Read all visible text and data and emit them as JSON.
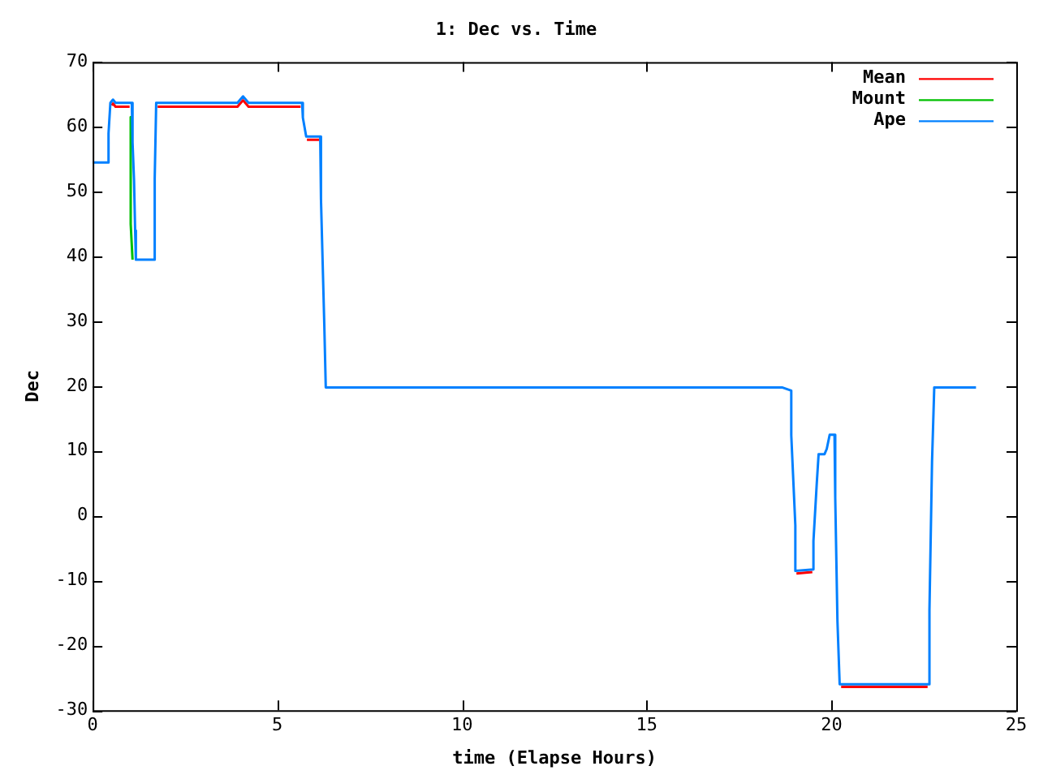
{
  "chart_data": {
    "type": "line",
    "title": "1: Dec vs. Time",
    "xlabel": "time (Elapse Hours)",
    "ylabel": "Dec",
    "xlim": [
      0,
      25
    ],
    "xticks": [
      0,
      5,
      10,
      15,
      20,
      25
    ],
    "ylim": [
      -30,
      70
    ],
    "yticks": [
      -30,
      -20,
      -10,
      0,
      10,
      20,
      30,
      40,
      50,
      60,
      70
    ],
    "grid": false,
    "legend": "top right",
    "marker": "none",
    "line_style": "solid",
    "series": [
      {
        "name": "Mean",
        "color": "#ff0000",
        "x": [
          0.52,
          0.55,
          0.62,
          1.0,
          1.5,
          1.76,
          3.92,
          4.07,
          4.22,
          5.63,
          5.72,
          5.8,
          6.13,
          12,
          19.05,
          19.48,
          20,
          20.26,
          22.6
        ],
        "values": [
          63.3,
          63.6,
          63.1,
          63.1,
          null,
          63.1,
          63.1,
          64.1,
          63.1,
          63.1,
          null,
          58,
          58,
          null,
          -8.9,
          -8.7,
          null,
          -26.4,
          -26.4
        ]
      },
      {
        "name": "Mount",
        "color": "#00c000",
        "x": [
          1.03,
          1.03,
          1.08
        ],
        "values": [
          61.5,
          45,
          39.5
        ]
      },
      {
        "name": "Ape",
        "color": "#0080ff",
        "x": [
          0,
          0.43,
          0.43,
          0.48,
          0.55,
          0.62,
          1.06,
          1.08,
          1.12,
          1.15,
          1.17,
          1.68,
          1.68,
          1.72,
          3.92,
          4.07,
          4.22,
          5.67,
          5.69,
          5.78,
          6.16,
          6.18,
          6.27,
          6.31,
          18.66,
          18.91,
          18.91,
          19.02,
          19.02,
          19.51,
          19.51,
          19.6,
          19.65,
          19.81,
          19.87,
          19.95,
          20.08,
          20.1,
          20.16,
          20.22,
          22.63,
          22.65,
          22.72,
          22.78,
          23.91
        ],
        "values": [
          54.5,
          54.5,
          59,
          63.7,
          64.2,
          63.7,
          63.7,
          57.6,
          51.8,
          44,
          39.5,
          39.5,
          52,
          63.7,
          63.7,
          64.7,
          63.7,
          63.7,
          61.4,
          58.5,
          58.5,
          48.9,
          29.5,
          19.8,
          19.8,
          19.3,
          12.4,
          -1.5,
          -8.5,
          -8.3,
          -3.9,
          5,
          9.5,
          9.5,
          10.3,
          12.5,
          12.5,
          2.8,
          -16.3,
          -26,
          -26,
          -14.5,
          8.4,
          19.8,
          19.8
        ]
      }
    ]
  }
}
